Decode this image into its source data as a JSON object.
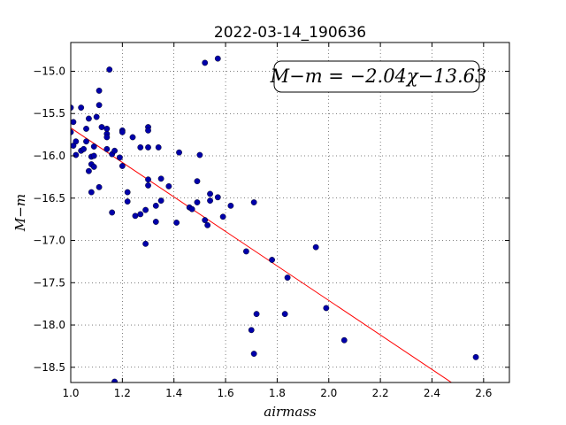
{
  "chart_data": {
    "type": "scatter",
    "title": "2022-03-14_190636",
    "xlabel": "airmass",
    "ylabel": "M−m",
    "xlim": [
      1.0,
      2.7
    ],
    "ylim": [
      -18.68,
      -14.66
    ],
    "x_ticks": [
      "1.0",
      "1.2",
      "1.4",
      "1.6",
      "1.8",
      "2.0",
      "2.2",
      "2.4",
      "2.6"
    ],
    "y_ticks": [
      "−15.0",
      "−15.5",
      "−16.0",
      "−16.5",
      "−17.0",
      "−17.5",
      "−18.0",
      "−18.5"
    ],
    "grid": true,
    "annotation": "M−m = −2.04χ−13.63",
    "annotation_position": "top-right",
    "fit": {
      "slope": -2.04,
      "intercept": -13.63,
      "color": "#ff0000"
    },
    "point_color": "#0000aa",
    "points": [
      [
        1.0,
        -15.43
      ],
      [
        1.0,
        -15.72
      ],
      [
        1.01,
        -15.88
      ],
      [
        1.01,
        -15.6
      ],
      [
        1.02,
        -15.83
      ],
      [
        1.02,
        -15.99
      ],
      [
        1.04,
        -15.43
      ],
      [
        1.04,
        -15.94
      ],
      [
        1.05,
        -15.92
      ],
      [
        1.06,
        -15.68
      ],
      [
        1.06,
        -15.83
      ],
      [
        1.07,
        -16.18
      ],
      [
        1.07,
        -15.56
      ],
      [
        1.08,
        -16.01
      ],
      [
        1.08,
        -16.1
      ],
      [
        1.08,
        -16.43
      ],
      [
        1.09,
        -16.13
      ],
      [
        1.09,
        -15.89
      ],
      [
        1.09,
        -16.0
      ],
      [
        1.1,
        -15.54
      ],
      [
        1.11,
        -15.23
      ],
      [
        1.11,
        -15.4
      ],
      [
        1.11,
        -16.37
      ],
      [
        1.12,
        -15.66
      ],
      [
        1.14,
        -15.74
      ],
      [
        1.14,
        -15.78
      ],
      [
        1.14,
        -15.68
      ],
      [
        1.14,
        -15.92
      ],
      [
        1.15,
        -14.98
      ],
      [
        1.16,
        -16.67
      ],
      [
        1.16,
        -15.98
      ],
      [
        1.17,
        -15.94
      ],
      [
        1.17,
        -18.67
      ],
      [
        1.19,
        -16.02
      ],
      [
        1.2,
        -15.7
      ],
      [
        1.2,
        -15.72
      ],
      [
        1.2,
        -16.12
      ],
      [
        1.22,
        -16.54
      ],
      [
        1.22,
        -16.43
      ],
      [
        1.24,
        -15.78
      ],
      [
        1.25,
        -16.71
      ],
      [
        1.27,
        -16.69
      ],
      [
        1.27,
        -15.9
      ],
      [
        1.29,
        -16.64
      ],
      [
        1.29,
        -17.04
      ],
      [
        1.3,
        -16.28
      ],
      [
        1.3,
        -16.35
      ],
      [
        1.3,
        -15.66
      ],
      [
        1.3,
        -15.7
      ],
      [
        1.3,
        -15.9
      ],
      [
        1.33,
        -16.78
      ],
      [
        1.33,
        -16.59
      ],
      [
        1.34,
        -15.9
      ],
      [
        1.35,
        -16.27
      ],
      [
        1.35,
        -16.53
      ],
      [
        1.38,
        -16.36
      ],
      [
        1.41,
        -16.79
      ],
      [
        1.42,
        -15.96
      ],
      [
        1.46,
        -16.61
      ],
      [
        1.47,
        -16.63
      ],
      [
        1.49,
        -16.55
      ],
      [
        1.49,
        -16.3
      ],
      [
        1.5,
        -15.99
      ],
      [
        1.52,
        -16.76
      ],
      [
        1.52,
        -14.9
      ],
      [
        1.53,
        -16.82
      ],
      [
        1.54,
        -16.53
      ],
      [
        1.54,
        -16.45
      ],
      [
        1.57,
        -16.49
      ],
      [
        1.57,
        -14.85
      ],
      [
        1.59,
        -16.72
      ],
      [
        1.62,
        -16.59
      ],
      [
        1.68,
        -17.13
      ],
      [
        1.7,
        -18.06
      ],
      [
        1.71,
        -16.55
      ],
      [
        1.71,
        -18.34
      ],
      [
        1.72,
        -17.87
      ],
      [
        1.78,
        -17.23
      ],
      [
        1.83,
        -17.87
      ],
      [
        1.84,
        -17.44
      ],
      [
        1.95,
        -17.08
      ],
      [
        1.99,
        -17.8
      ],
      [
        2.06,
        -18.18
      ],
      [
        2.57,
        -18.38
      ]
    ]
  }
}
